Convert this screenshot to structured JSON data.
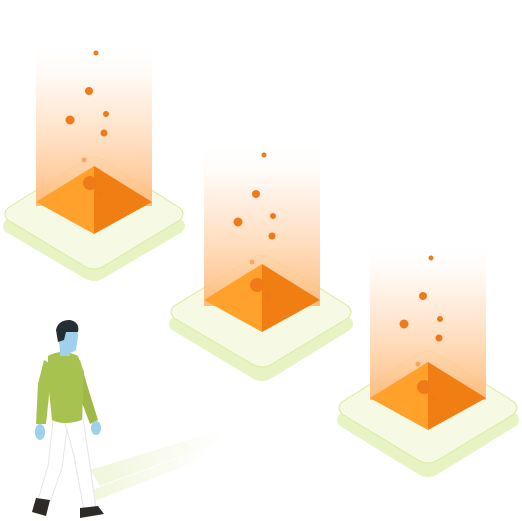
{
  "scene": {
    "colors": {
      "background": "#ffffff",
      "platform_base": "#e8f3c4",
      "platform_top": "#f6f9e4",
      "platform_edge": "#dbea9e",
      "glow_top": "#ffffff",
      "glow_bottom": "#ffb978",
      "pyramid_light": "#ffa12b",
      "pyramid_dark": "#f07e12",
      "particle": "#f07a18",
      "person_sweater": "#a7c24e",
      "person_skin": "#9fd0ec",
      "person_hair": "#223036",
      "person_pants": "#ffffff",
      "person_shoes": "#2e2a26",
      "shadow": "#eef5d6"
    },
    "objects": [
      {
        "name": "glow-platform-1"
      },
      {
        "name": "glow-platform-2"
      },
      {
        "name": "glow-platform-3"
      },
      {
        "name": "walking-person"
      }
    ]
  }
}
